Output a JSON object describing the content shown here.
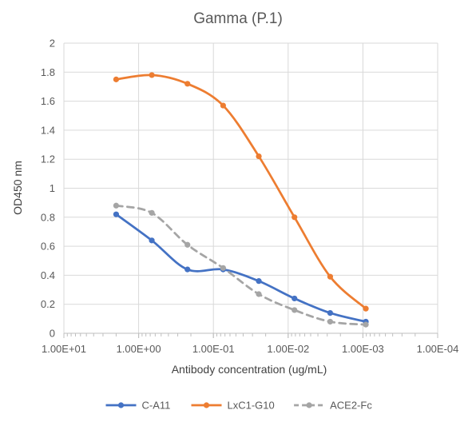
{
  "chart_data": {
    "type": "line",
    "title": "Gamma (P.1)",
    "xlabel": "Antibody concentration (ug/mL)",
    "ylabel": "OD450 nm",
    "x_scale": "log",
    "x_reversed": true,
    "xlim": [
      10,
      0.0001
    ],
    "ylim": [
      0,
      2
    ],
    "grid": true,
    "legend_position": "bottom",
    "x_tick_labels": [
      "1.00E+01",
      "1.00E+00",
      "1.00E-01",
      "1.00E-02",
      "1.00E-03",
      "1.00E-04"
    ],
    "y_tick_labels": [
      "0",
      "0.2",
      "0.4",
      "0.6",
      "0.8",
      "1",
      "1.2",
      "1.4",
      "1.6",
      "1.8",
      "2"
    ],
    "x": [
      2,
      0.6667,
      0.2222,
      0.0741,
      0.0247,
      0.00823,
      0.00274,
      0.000914
    ],
    "series": [
      {
        "name": "C-A11",
        "color": "#4472C4",
        "dash": false,
        "values": [
          0.82,
          0.64,
          0.44,
          0.44,
          0.36,
          0.24,
          0.14,
          0.08
        ]
      },
      {
        "name": "LxC1-G10",
        "color": "#ED7D31",
        "dash": false,
        "values": [
          1.75,
          1.78,
          1.72,
          1.57,
          1.22,
          0.8,
          0.39,
          0.17
        ]
      },
      {
        "name": "ACE2-Fc",
        "color": "#A5A5A5",
        "dash": true,
        "values": [
          0.88,
          0.83,
          0.61,
          0.45,
          0.27,
          0.16,
          0.08,
          0.06
        ]
      }
    ]
  }
}
